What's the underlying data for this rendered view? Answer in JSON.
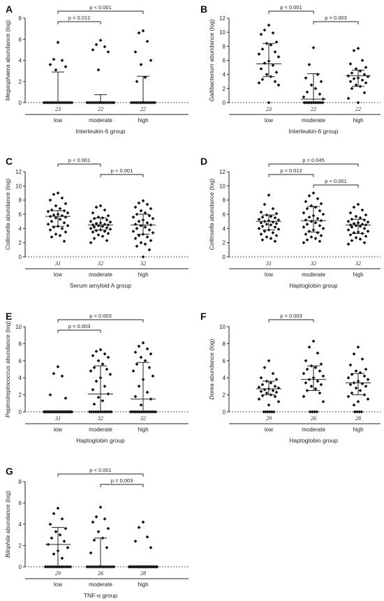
{
  "colors": {
    "points": "#111111",
    "axis": "#222222"
  },
  "chart_data": [
    {
      "panel": "A",
      "type": "scatter",
      "ylabel_italic": "Megasphaera",
      "ylabel_rest": " abundance (log)",
      "xlabel": "Interleukin-6 group",
      "ylim": [
        0,
        8
      ],
      "yticks": [
        "0",
        "2",
        "4",
        "6",
        "8"
      ],
      "categories": [
        "low",
        "moderate",
        "high"
      ],
      "n": [
        "23",
        "22",
        "22"
      ],
      "summary": [
        {
          "median": 0,
          "q1": 0,
          "q3": 2.9
        },
        {
          "median": 0,
          "q1": 0,
          "q3": 0.75
        },
        {
          "median": 0,
          "q1": 0,
          "q3": 2.5
        }
      ],
      "points": [
        [
          5.7,
          4.1,
          4.0,
          3.6,
          3.4,
          3.1,
          0,
          0,
          0,
          0,
          0,
          0,
          0,
          0,
          0,
          0,
          0,
          0,
          0,
          0,
          0,
          0,
          0
        ],
        [
          5.9,
          5.5,
          5.3,
          5.0,
          4.8,
          3.1,
          0,
          0,
          0,
          0,
          0,
          0,
          0,
          0,
          0,
          0,
          0,
          0,
          0,
          0,
          0,
          0
        ],
        [
          6.8,
          6.6,
          5.8,
          4.8,
          4.0,
          3.6,
          2.4,
          2.0,
          0,
          0,
          0,
          0,
          0,
          0,
          0,
          0,
          0,
          0,
          0,
          0,
          0,
          0
        ]
      ],
      "brackets": [
        {
          "from": 0,
          "to": 2,
          "label": "p < 0.001",
          "level": 1
        },
        {
          "from": 0,
          "to": 1,
          "label": "p = 0.012",
          "level": 0
        }
      ]
    },
    {
      "panel": "B",
      "type": "scatter",
      "ylabel_italic": "Gallibacterium",
      "ylabel_rest": " abundance (log)",
      "xlabel": "Interleukin-6 group",
      "ylim": [
        0,
        12
      ],
      "yticks": [
        "0",
        "2",
        "4",
        "6",
        "8",
        "10",
        "12"
      ],
      "categories": [
        "low",
        "moderate",
        "high"
      ],
      "n": [
        "23",
        "22",
        "22"
      ],
      "summary": [
        {
          "median": 5.5,
          "q1": 3.7,
          "q3": 8.4
        },
        {
          "median": 0.5,
          "q1": 0,
          "q3": 4.1
        },
        {
          "median": 3.8,
          "q1": 2.3,
          "q3": 4.6
        }
      ],
      "points": [
        [
          11.0,
          10.3,
          9.9,
          9.7,
          8.6,
          8.4,
          8.2,
          7.6,
          7.2,
          6.9,
          6.5,
          5.9,
          5.6,
          5.3,
          4.8,
          4.3,
          4.0,
          3.7,
          3.3,
          3.0,
          2.8,
          2.5,
          0
        ],
        [
          7.8,
          5.4,
          4.0,
          3.5,
          3.0,
          2.5,
          2.0,
          1.5,
          1.2,
          0.8,
          0.5,
          0,
          0,
          0,
          0,
          0,
          0,
          0,
          0,
          0,
          0,
          0
        ],
        [
          7.7,
          7.4,
          6.0,
          5.5,
          5.0,
          4.8,
          4.5,
          4.2,
          4.0,
          3.8,
          3.7,
          3.5,
          3.4,
          3.2,
          3.0,
          2.8,
          2.5,
          2.3,
          2.0,
          1.4,
          0.6,
          0
        ]
      ],
      "brackets": [
        {
          "from": 0,
          "to": 1,
          "label": "p < 0.001",
          "level": 1
        },
        {
          "from": 1,
          "to": 2,
          "label": "p = 0.003",
          "level": 0
        }
      ]
    },
    {
      "panel": "C",
      "type": "scatter",
      "ylabel_italic": "Collinsella",
      "ylabel_rest": " abundance (log)",
      "xlabel": "Serum amyloid A group",
      "ylim": [
        0,
        12
      ],
      "yticks": [
        "0",
        "2",
        "4",
        "6",
        "8",
        "10",
        "12"
      ],
      "categories": [
        "low",
        "moderate",
        "high"
      ],
      "n": [
        "31",
        "32",
        "32"
      ],
      "summary": [
        {
          "median": 5.7,
          "q1": 4.3,
          "q3": 6.5
        },
        {
          "median": 4.5,
          "q1": 3.8,
          "q3": 5.5
        },
        {
          "median": 4.5,
          "q1": 3.2,
          "q3": 6.0
        }
      ],
      "points": [
        [
          9.0,
          8.8,
          8.3,
          8.0,
          7.5,
          7.2,
          6.8,
          6.6,
          6.5,
          6.4,
          6.2,
          6.0,
          5.9,
          5.8,
          5.7,
          5.6,
          5.5,
          5.3,
          5.0,
          4.8,
          4.6,
          4.4,
          4.3,
          4.2,
          4.0,
          3.8,
          3.5,
          3.2,
          3.0,
          2.8,
          2.2
        ],
        [
          7.2,
          7.0,
          6.6,
          6.2,
          5.8,
          5.6,
          5.5,
          5.4,
          5.2,
          5.0,
          4.9,
          4.8,
          4.7,
          4.6,
          4.5,
          4.5,
          4.4,
          4.3,
          4.2,
          4.1,
          4.0,
          3.9,
          3.8,
          3.7,
          3.6,
          3.5,
          3.3,
          3.1,
          2.9,
          2.6,
          2.3,
          2.0
        ],
        [
          7.9,
          7.6,
          7.4,
          7.0,
          6.8,
          6.5,
          6.2,
          6.0,
          5.8,
          5.6,
          5.4,
          5.2,
          5.0,
          4.8,
          4.6,
          4.5,
          4.4,
          4.2,
          4.0,
          3.8,
          3.6,
          3.4,
          3.2,
          3.0,
          2.8,
          2.6,
          2.3,
          2.0,
          1.8,
          1.5,
          1.0,
          0
        ]
      ],
      "brackets": [
        {
          "from": 0,
          "to": 1,
          "label": "p < 0.001",
          "level": 1
        },
        {
          "from": 1,
          "to": 2,
          "label": "p < 0.001",
          "level": 0
        }
      ]
    },
    {
      "panel": "D",
      "type": "scatter",
      "ylabel_italic": "Collinsella",
      "ylabel_rest": " abundance (log)",
      "xlabel": "Haptoglobin group",
      "ylim": [
        0,
        12
      ],
      "yticks": [
        "0",
        "2",
        "4",
        "6",
        "8",
        "10",
        "12"
      ],
      "categories": [
        "low",
        "moderate",
        "high"
      ],
      "n": [
        "31",
        "32",
        "32"
      ],
      "summary": [
        {
          "median": 5.0,
          "q1": 3.8,
          "q3": 5.9
        },
        {
          "median": 5.1,
          "q1": 3.5,
          "q3": 7.1
        },
        {
          "median": 4.5,
          "q1": 3.3,
          "q3": 5.3
        }
      ],
      "points": [
        [
          8.7,
          7.4,
          6.8,
          6.3,
          6.1,
          5.9,
          5.7,
          5.6,
          5.5,
          5.3,
          5.2,
          5.1,
          5.0,
          4.9,
          4.8,
          4.7,
          4.6,
          4.5,
          4.3,
          4.2,
          4.0,
          3.9,
          3.8,
          3.6,
          3.4,
          3.2,
          3.0,
          2.8,
          2.6,
          2.4,
          2.2
        ],
        [
          9.0,
          8.6,
          8.2,
          7.8,
          7.5,
          7.2,
          7.0,
          6.8,
          6.5,
          6.2,
          6.0,
          5.8,
          5.6,
          5.4,
          5.2,
          5.1,
          5.0,
          4.8,
          4.6,
          4.4,
          4.2,
          4.0,
          3.8,
          3.6,
          3.4,
          3.2,
          3.0,
          2.8,
          2.6,
          2.4,
          2.2,
          2.0
        ],
        [
          7.4,
          7.0,
          6.6,
          6.2,
          5.9,
          5.7,
          5.5,
          5.3,
          5.2,
          5.0,
          4.9,
          4.8,
          4.7,
          4.6,
          4.5,
          4.5,
          4.4,
          4.3,
          4.2,
          4.0,
          3.8,
          3.6,
          3.5,
          3.4,
          3.3,
          3.1,
          2.9,
          2.7,
          2.5,
          2.3,
          2.0,
          1.8
        ]
      ],
      "brackets": [
        {
          "from": 0,
          "to": 2,
          "label": "p = 0.045",
          "level": 2
        },
        {
          "from": 0,
          "to": 1,
          "label": "p = 0.012",
          "level": 1
        },
        {
          "from": 1,
          "to": 2,
          "label": "p < 0.001",
          "level": 0
        }
      ]
    },
    {
      "panel": "E",
      "type": "scatter",
      "ylabel_italic": "Peptostreptococcus",
      "ylabel_rest": " abundance (log)",
      "xlabel": "Haptoglobin group",
      "ylim": [
        0,
        10
      ],
      "yticks": [
        "0",
        "2",
        "4",
        "6",
        "8",
        "10"
      ],
      "categories": [
        "low",
        "moderate",
        "high"
      ],
      "n": [
        "31",
        "32",
        "32"
      ],
      "summary": [
        {
          "median": 0,
          "q1": 0,
          "q3": 0
        },
        {
          "median": 2.1,
          "q1": 0,
          "q3": 5.4
        },
        {
          "median": 1.5,
          "q1": 0,
          "q3": 5.8
        }
      ],
      "points": [
        [
          5.3,
          4.5,
          4.2,
          2.0,
          1.6,
          0,
          0,
          0,
          0,
          0,
          0,
          0,
          0,
          0,
          0,
          0,
          0,
          0,
          0,
          0,
          0,
          0,
          0,
          0,
          0,
          0,
          0,
          0,
          0,
          0,
          0
        ],
        [
          7.3,
          7.1,
          6.8,
          6.6,
          6.4,
          6.0,
          5.6,
          5.2,
          5.0,
          4.8,
          4.4,
          4.0,
          3.6,
          3.0,
          2.6,
          2.1,
          1.7,
          1.3,
          0.9,
          0,
          0,
          0,
          0,
          0,
          0,
          0,
          0,
          0,
          0,
          0,
          0,
          0
        ],
        [
          8.1,
          7.7,
          7.4,
          7.0,
          6.8,
          6.4,
          6.0,
          5.6,
          5.2,
          4.8,
          4.2,
          3.8,
          3.0,
          2.3,
          1.8,
          1.5,
          0.8,
          0,
          0,
          0,
          0,
          0,
          0,
          0,
          0,
          0,
          0,
          0,
          0,
          0,
          0,
          0
        ]
      ],
      "brackets": [
        {
          "from": 0,
          "to": 2,
          "label": "p = 0.003",
          "level": 1
        },
        {
          "from": 0,
          "to": 1,
          "label": "p = 0.003",
          "level": 0
        }
      ]
    },
    {
      "panel": "F",
      "type": "scatter",
      "ylabel_italic": "Dorea",
      "ylabel_rest": " abundance (log)",
      "xlabel": "Haptoglobin group",
      "ylim": [
        0,
        10
      ],
      "yticks": [
        "0",
        "2",
        "4",
        "6",
        "8",
        "10"
      ],
      "categories": [
        "low",
        "moderate",
        "high"
      ],
      "n": [
        "29",
        "26",
        "28"
      ],
      "summary": [
        {
          "median": 2.7,
          "q1": 2.0,
          "q3": 3.6
        },
        {
          "median": 3.8,
          "q1": 2.5,
          "q3": 5.4
        },
        {
          "median": 3.4,
          "q1": 2.0,
          "q3": 4.5
        }
      ],
      "points": [
        [
          6.0,
          5.2,
          4.5,
          4.0,
          3.8,
          3.6,
          3.4,
          3.2,
          3.0,
          2.9,
          2.8,
          2.7,
          2.6,
          2.5,
          2.4,
          2.3,
          2.2,
          2.0,
          1.9,
          1.8,
          1.5,
          1.2,
          0.8,
          0,
          0,
          0,
          0,
          0,
          0
        ],
        [
          8.3,
          7.6,
          6.9,
          6.0,
          5.6,
          5.4,
          5.2,
          5.0,
          4.8,
          4.5,
          4.2,
          4.0,
          3.8,
          3.6,
          3.4,
          3.2,
          3.0,
          2.7,
          2.5,
          2.2,
          1.8,
          1.2,
          0,
          0,
          0,
          0
        ],
        [
          7.6,
          6.8,
          6.2,
          5.5,
          5.0,
          4.8,
          4.6,
          4.4,
          4.2,
          4.0,
          3.8,
          3.6,
          3.4,
          3.3,
          3.2,
          3.0,
          2.8,
          2.5,
          2.2,
          2.0,
          1.8,
          1.5,
          1.2,
          0.8,
          0,
          0,
          0,
          0
        ]
      ],
      "brackets": [
        {
          "from": 0,
          "to": 1,
          "label": "p = 0.003",
          "level": 0
        }
      ]
    },
    {
      "panel": "G",
      "type": "scatter",
      "ylabel_italic": "Bilophila",
      "ylabel_rest": " abundance (log)",
      "xlabel": "TNF-α group",
      "ylim": [
        0,
        8
      ],
      "yticks": [
        "0",
        "2",
        "4",
        "6",
        "8"
      ],
      "categories": [
        "low",
        "moderate",
        "high"
      ],
      "n": [
        "29",
        "26",
        "28"
      ],
      "summary": [
        {
          "median": 2.1,
          "q1": 0,
          "q3": 3.7
        },
        {
          "median": 0,
          "q1": 0,
          "q3": 2.7
        },
        {
          "median": 0,
          "q1": 0,
          "q3": 0
        }
      ],
      "points": [
        [
          5.5,
          5.0,
          4.5,
          4.0,
          3.6,
          3.3,
          3.0,
          2.7,
          2.4,
          2.1,
          1.8,
          1.5,
          1.2,
          0.8,
          0,
          0,
          0,
          0,
          0,
          0,
          0,
          0,
          0,
          0,
          0,
          0,
          0,
          0,
          0
        ],
        [
          5.6,
          4.7,
          4.5,
          4.2,
          3.6,
          3.3,
          2.7,
          2.5,
          1.8,
          1.3,
          0,
          0,
          0,
          0,
          0,
          0,
          0,
          0,
          0,
          0,
          0,
          0,
          0,
          0,
          0,
          0
        ],
        [
          4.2,
          3.7,
          2.8,
          2.4,
          1.8,
          0,
          0,
          0,
          0,
          0,
          0,
          0,
          0,
          0,
          0,
          0,
          0,
          0,
          0,
          0,
          0,
          0,
          0,
          0,
          0,
          0,
          0,
          0
        ]
      ],
      "brackets": [
        {
          "from": 0,
          "to": 2,
          "label": "p < 0.001",
          "level": 1
        },
        {
          "from": 1,
          "to": 2,
          "label": "p = 0.003",
          "level": 0
        }
      ]
    }
  ]
}
